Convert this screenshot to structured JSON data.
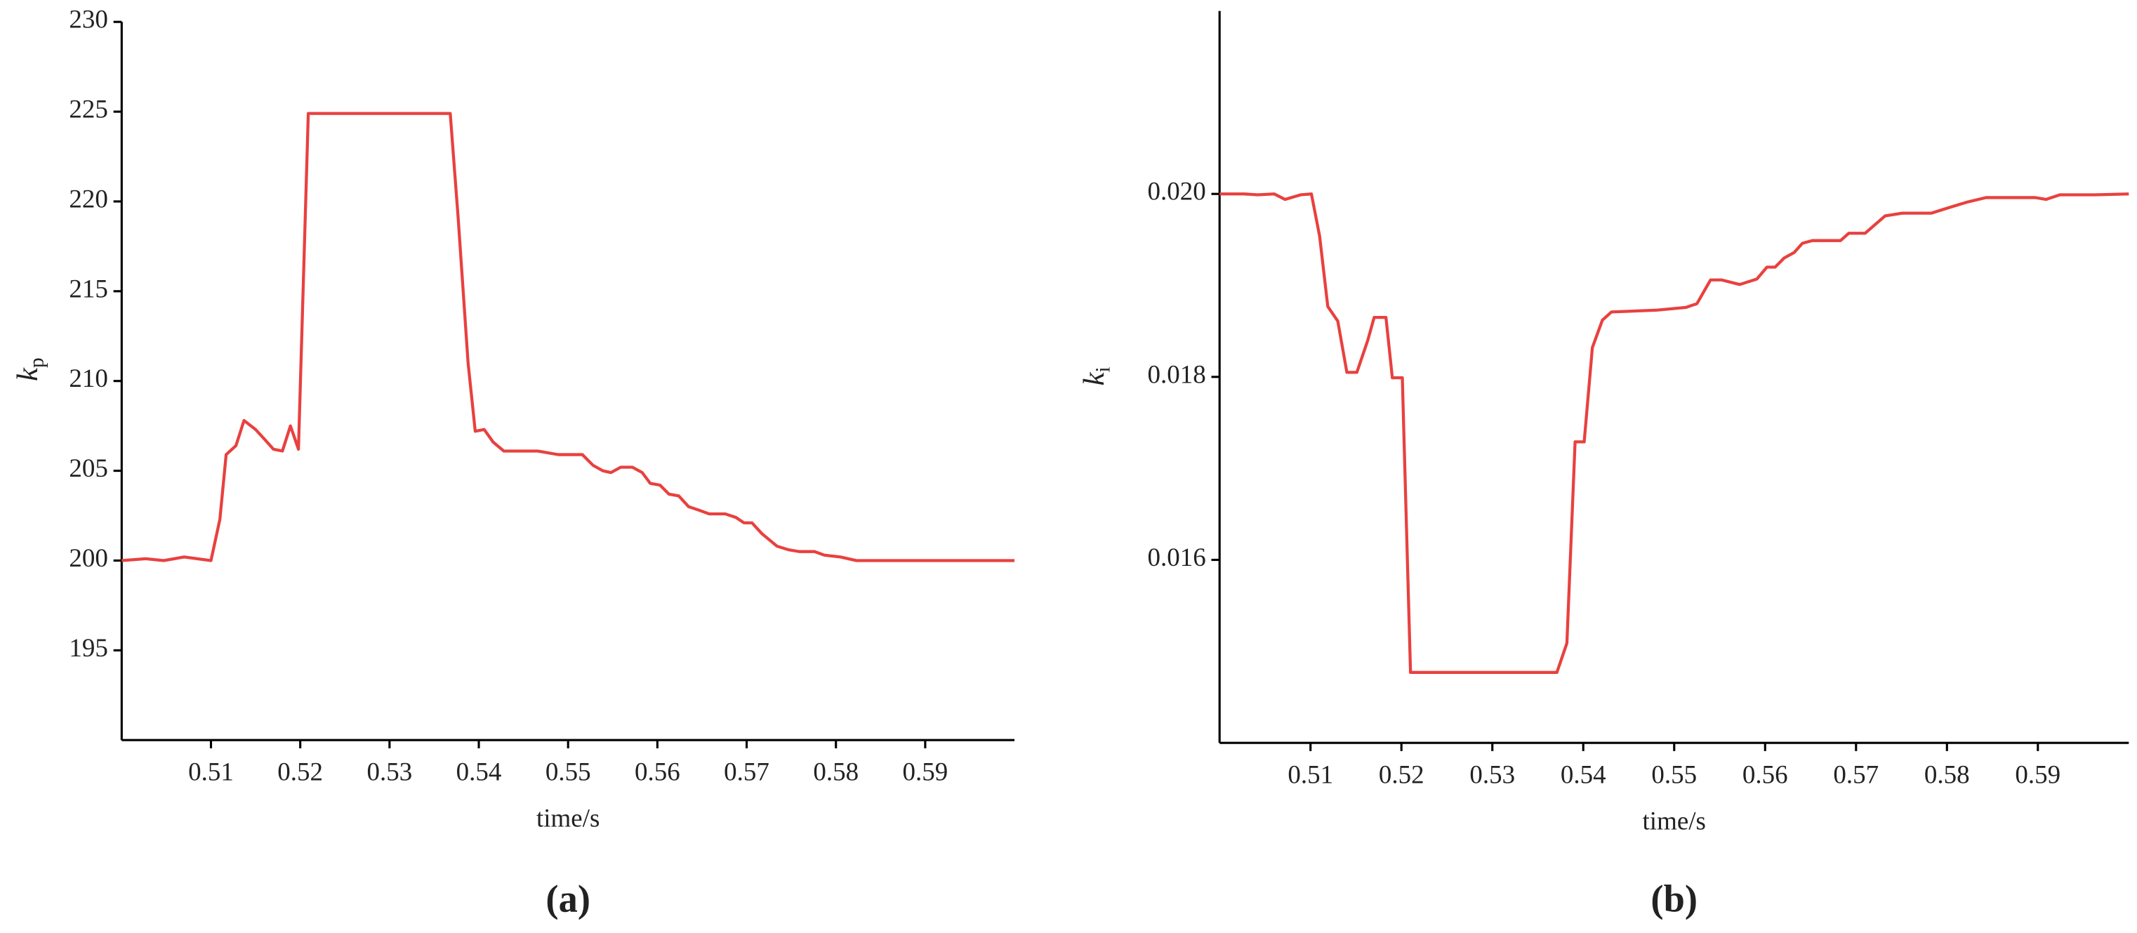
{
  "chart_data": [
    {
      "type": "line",
      "xlabel": "time/s",
      "ylabel": "k",
      "ylabel_sub": "p",
      "caption": "(a)",
      "color": "#e8413f",
      "xlim": [
        0.5,
        0.6
      ],
      "xticks": [
        0.51,
        0.52,
        0.53,
        0.54,
        0.55,
        0.56,
        0.57,
        0.58,
        0.59
      ],
      "ylim": [
        190,
        230
      ],
      "yticks": [
        195,
        200,
        205,
        210,
        215,
        220,
        225,
        230
      ],
      "x": [
        0.5,
        0.5027,
        0.5047,
        0.507,
        0.51,
        0.511,
        0.5117,
        0.5128,
        0.5137,
        0.515,
        0.5161,
        0.517,
        0.518,
        0.5189,
        0.5198,
        0.5209,
        0.5368,
        0.5377,
        0.5388,
        0.5396,
        0.5406,
        0.5416,
        0.5428,
        0.5466,
        0.5489,
        0.5516,
        0.5528,
        0.5539,
        0.5548,
        0.5559,
        0.5572,
        0.5583,
        0.5592,
        0.5603,
        0.5613,
        0.5624,
        0.5635,
        0.5647,
        0.5658,
        0.5676,
        0.5688,
        0.5697,
        0.5706,
        0.5717,
        0.5734,
        0.5747,
        0.5759,
        0.5776,
        0.5787,
        0.5805,
        0.5823,
        0.6
      ],
      "values": [
        200.0,
        200.1,
        200.0,
        200.2,
        200.0,
        202.3,
        205.9,
        206.4,
        207.8,
        207.3,
        206.7,
        206.2,
        206.1,
        207.5,
        206.2,
        224.9,
        224.9,
        219.0,
        211.0,
        207.2,
        207.3,
        206.6,
        206.1,
        206.1,
        205.9,
        205.9,
        205.3,
        205.0,
        204.9,
        205.2,
        205.2,
        204.9,
        204.3,
        204.2,
        203.7,
        203.6,
        203.0,
        202.8,
        202.6,
        202.6,
        202.4,
        202.1,
        202.1,
        201.5,
        200.8,
        200.6,
        200.5,
        200.5,
        200.3,
        200.2,
        200.0,
        200.0
      ]
    },
    {
      "type": "line",
      "xlabel": "time/s",
      "ylabel": "k",
      "ylabel_sub": "i",
      "caption": "(b)",
      "color": "#e8413f",
      "xlim": [
        0.5,
        0.6
      ],
      "xticks": [
        0.51,
        0.52,
        0.53,
        0.54,
        0.55,
        0.56,
        0.57,
        0.58,
        0.59
      ],
      "ylim": [
        0.014,
        0.022
      ],
      "yticks": [
        0.016,
        0.018,
        {
          "value": 0.02,
          "label": "0.020"
        }
      ],
      "x": [
        0.5,
        0.5027,
        0.5042,
        0.506,
        0.5072,
        0.5089,
        0.5101,
        0.511,
        0.5119,
        0.513,
        0.514,
        0.5151,
        0.5163,
        0.517,
        0.5183,
        0.519,
        0.5201,
        0.521,
        0.5371,
        0.5382,
        0.5391,
        0.5401,
        0.541,
        0.5421,
        0.5431,
        0.5481,
        0.5513,
        0.5525,
        0.554,
        0.5552,
        0.5572,
        0.5591,
        0.5602,
        0.5611,
        0.5621,
        0.5632,
        0.5641,
        0.5652,
        0.5683,
        0.5692,
        0.571,
        0.5732,
        0.5751,
        0.5783,
        0.5802,
        0.5822,
        0.5843,
        0.5872,
        0.5897,
        0.5909,
        0.5924,
        0.5963,
        0.6
      ],
      "values": [
        0.02,
        0.02,
        0.01999,
        0.02,
        0.01994,
        0.01999,
        0.02,
        0.01954,
        0.01877,
        0.01861,
        0.01805,
        0.01805,
        0.0184,
        0.01865,
        0.01865,
        0.01799,
        0.01799,
        0.01477,
        0.01477,
        0.01509,
        0.01729,
        0.01729,
        0.01832,
        0.01862,
        0.01871,
        0.01873,
        0.01876,
        0.0188,
        0.01906,
        0.01906,
        0.01901,
        0.01907,
        0.0192,
        0.0192,
        0.0193,
        0.01936,
        0.01946,
        0.01949,
        0.01949,
        0.01957,
        0.01957,
        0.01976,
        0.01979,
        0.01979,
        0.01985,
        0.01991,
        0.01996,
        0.01996,
        0.01996,
        0.01994,
        0.01999,
        0.01999,
        0.02
      ]
    }
  ]
}
